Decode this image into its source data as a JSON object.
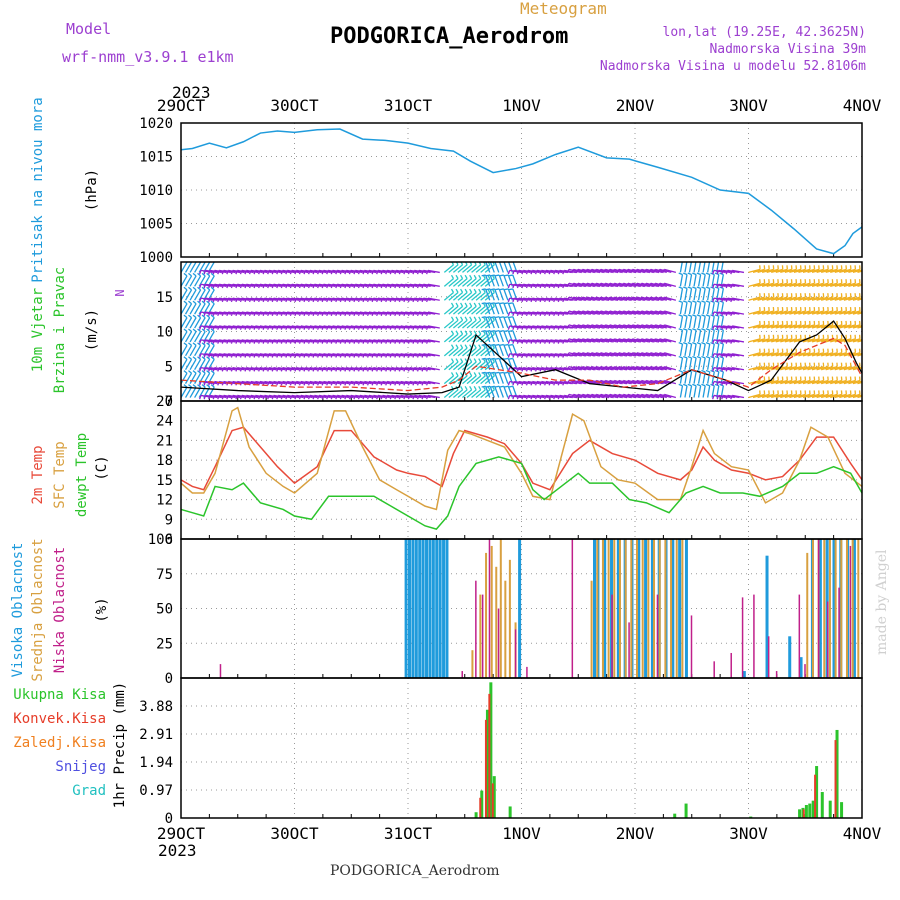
{
  "header": {
    "meteogram": "Meteogram",
    "station": "PODGORICA_Aerodrom",
    "model_label": "Model",
    "model": "wrf-nmm_v3.9.1 e1km",
    "lonlat": "lon,lat (19.25E, 42.3625N)",
    "elevation": "Nadmorska Visina 39m",
    "model_elevation": "Nadmorska Visina u modelu 52.8106m",
    "year_top": "2023",
    "year_bottom": "2023",
    "footer": "PODGORICA_Aerodrom",
    "watermark": "made by Angel"
  },
  "colors": {
    "pressure": "#1f9bdc",
    "wind_speed": "#000000",
    "wind_gust": "#e63c28",
    "t2m": "#e84a3a",
    "tsfc": "#d8a040",
    "dewpt": "#2bc42b",
    "cloud_high": "#1f9bdc",
    "cloud_mid": "#d8a040",
    "cloud_low": "#c0208a",
    "rain_total": "#2bc42b",
    "rain_conv": "#e63c28",
    "rain_frz": "#f08020",
    "snow": "#5050e0",
    "hail": "#20c0c0",
    "barb_calm": "#9020d0"
  },
  "time_axis": {
    "labels": [
      "29OCT",
      "30OCT",
      "31OCT",
      "1NOV",
      "2NOV",
      "3NOV",
      "4NOV"
    ]
  },
  "chart_data": [
    {
      "type": "line",
      "panel": "pressure",
      "ylabel": [
        "Pritisak na nivou mora",
        "(hPa)"
      ],
      "ylim": [
        1000,
        1020
      ],
      "yticks": [
        1000,
        1005,
        1010,
        1015,
        1020
      ],
      "x_unit": "days since 29OCT 00UTC",
      "series": [
        {
          "x": [
            0,
            0.1,
            0.25,
            0.4,
            0.55,
            0.7,
            0.85,
            1.0,
            1.2,
            1.4,
            1.6,
            1.8,
            2.0,
            2.2,
            2.4,
            2.55,
            2.75,
            2.95,
            3.1,
            3.3,
            3.5,
            3.75,
            3.95,
            4.2,
            4.5,
            4.75,
            5.0,
            5.2,
            5.4,
            5.6,
            5.75,
            5.85,
            5.92,
            6.0
          ],
          "y": [
            1016,
            1016.2,
            1017,
            1016.3,
            1017.2,
            1018.5,
            1018.8,
            1018.6,
            1019,
            1019.1,
            1017.6,
            1017.4,
            1017.0,
            1016.2,
            1015.8,
            1014.3,
            1012.6,
            1013.2,
            1013.9,
            1015.3,
            1016.4,
            1014.8,
            1014.6,
            1013.4,
            1011.9,
            1010.0,
            1009.5,
            1007.0,
            1004.2,
            1001.2,
            1000.5,
            1001.7,
            1003.5,
            1004.5
          ]
        }
      ]
    },
    {
      "type": "line",
      "panel": "wind",
      "ylabel": [
        "10m Vjetar",
        "Brzina i Pravac",
        "(m/s)"
      ],
      "compass": "N",
      "ylim": [
        0,
        20
      ],
      "yticks": [
        0,
        5,
        10,
        15
      ],
      "series": [
        {
          "name": "speed",
          "x": [
            0,
            0.5,
            1.0,
            1.5,
            2.0,
            2.3,
            2.45,
            2.6,
            2.8,
            3.0,
            3.3,
            3.6,
            3.9,
            4.2,
            4.5,
            4.8,
            5.0,
            5.2,
            5.45,
            5.6,
            5.75,
            5.85,
            5.95,
            6.0
          ],
          "y": [
            2,
            1.5,
            1.2,
            1.5,
            1.0,
            1.2,
            2.0,
            9.5,
            6.5,
            3.5,
            4.5,
            2.5,
            2.0,
            1.5,
            4.5,
            3.0,
            1.5,
            3.0,
            8.5,
            9.5,
            11.5,
            9.0,
            5.5,
            4.0
          ]
        },
        {
          "name": "gust",
          "x": [
            0,
            0.5,
            1.0,
            1.5,
            2.0,
            2.3,
            2.45,
            2.6,
            2.8,
            3.0,
            3.3,
            3.6,
            3.9,
            4.2,
            4.5,
            4.8,
            5.0,
            5.2,
            5.45,
            5.6,
            5.75,
            5.85,
            5.95,
            6.0
          ],
          "y": [
            3,
            2.5,
            2.0,
            2.0,
            1.5,
            2.0,
            3.0,
            5.0,
            4.5,
            4.0,
            3.0,
            3.0,
            2.0,
            2.5,
            4.5,
            3.0,
            2.0,
            4.5,
            7.0,
            8.0,
            9.0,
            8.0,
            5.0,
            3.5
          ]
        }
      ],
      "barbs": {
        "rows": [
          0.5,
          2.5,
          4.5,
          6.5,
          8.5,
          10.5,
          12.5,
          14.5,
          16.5,
          18.5
        ],
        "direction_by_segment": [
          {
            "from": 0,
            "to": 0.25,
            "angle": 60,
            "color": "#1f9bdc"
          },
          {
            "from": 0.25,
            "to": 2.3,
            "angle": 170,
            "color": "#9020d0"
          },
          {
            "from": 2.3,
            "to": 2.7,
            "angle": 40,
            "color": "#28c8c8"
          },
          {
            "from": 2.7,
            "to": 3.0,
            "angle": 110,
            "color": "#1f9bdc"
          },
          {
            "from": 3.0,
            "to": 3.5,
            "angle": 170,
            "color": "#9020d0"
          },
          {
            "from": 3.5,
            "to": 4.4,
            "angle": 165,
            "color": "#9020d0"
          },
          {
            "from": 4.4,
            "to": 4.8,
            "angle": 80,
            "color": "#1f9bdc"
          },
          {
            "from": 4.8,
            "to": 5.0,
            "angle": 170,
            "color": "#9020d0"
          },
          {
            "from": 5.0,
            "to": 6.0,
            "angle": 15,
            "color": "#f0b020"
          }
        ]
      }
    },
    {
      "type": "line",
      "panel": "temperature",
      "ylabel": [
        "2m Temp",
        "SFC Temp",
        "dewpt Temp",
        "(C)"
      ],
      "ylim": [
        6,
        27
      ],
      "yticks": [
        6,
        9,
        12,
        15,
        18,
        21,
        24,
        27
      ],
      "series": [
        {
          "name": "2m Temp",
          "x": [
            0,
            0.1,
            0.2,
            0.3,
            0.45,
            0.55,
            0.7,
            0.85,
            1.0,
            1.2,
            1.35,
            1.5,
            1.7,
            1.9,
            2.0,
            2.15,
            2.3,
            2.4,
            2.5,
            2.7,
            2.85,
            3.0,
            3.1,
            3.25,
            3.45,
            3.6,
            3.8,
            4.0,
            4.2,
            4.4,
            4.5,
            4.6,
            4.7,
            4.85,
            5.0,
            5.15,
            5.3,
            5.45,
            5.6,
            5.75,
            5.9,
            6.0
          ],
          "y": [
            15,
            14,
            13.5,
            17,
            22.5,
            23,
            20,
            17,
            14.5,
            17,
            22.5,
            22.5,
            18.5,
            16.5,
            16,
            15.5,
            14,
            19,
            22.5,
            21.5,
            20.5,
            17.5,
            14.5,
            13.5,
            19,
            21,
            19,
            18,
            16,
            15,
            16.5,
            20,
            18,
            16.5,
            16,
            15,
            15.5,
            18,
            21.5,
            21.5,
            17.5,
            15
          ]
        },
        {
          "name": "SFC Temp",
          "x": [
            0,
            0.1,
            0.2,
            0.3,
            0.45,
            0.5,
            0.6,
            0.75,
            0.9,
            1.0,
            1.2,
            1.35,
            1.45,
            1.6,
            1.75,
            1.9,
            2.0,
            2.15,
            2.25,
            2.35,
            2.45,
            2.55,
            2.7,
            2.85,
            3.0,
            3.1,
            3.25,
            3.45,
            3.55,
            3.7,
            3.85,
            4.0,
            4.2,
            4.4,
            4.5,
            4.6,
            4.7,
            4.85,
            5.0,
            5.15,
            5.3,
            5.45,
            5.55,
            5.7,
            5.85,
            6.0
          ],
          "y": [
            14.5,
            13,
            13,
            16,
            25.5,
            26,
            20,
            16,
            14,
            13,
            16,
            25.5,
            25.5,
            20,
            15,
            13.5,
            12.5,
            11,
            10.5,
            19.5,
            22.5,
            22,
            21,
            20,
            16,
            12.5,
            12,
            25,
            24,
            17,
            15,
            14.5,
            12,
            12,
            17,
            22.5,
            19,
            17,
            16.5,
            11.5,
            13,
            18,
            23,
            21.5,
            16,
            14
          ]
        },
        {
          "name": "dewpt Temp",
          "x": [
            0,
            0.1,
            0.2,
            0.3,
            0.45,
            0.55,
            0.7,
            0.9,
            1.0,
            1.15,
            1.3,
            1.5,
            1.7,
            1.85,
            2.0,
            2.15,
            2.25,
            2.35,
            2.45,
            2.6,
            2.8,
            3.0,
            3.1,
            3.2,
            3.35,
            3.5,
            3.6,
            3.8,
            3.95,
            4.1,
            4.3,
            4.45,
            4.6,
            4.75,
            4.95,
            5.1,
            5.3,
            5.45,
            5.6,
            5.75,
            5.9,
            6.0
          ],
          "y": [
            10.5,
            10,
            9.5,
            14,
            13.5,
            14.5,
            11.5,
            10.5,
            9.5,
            9,
            12.5,
            12.5,
            12.5,
            11,
            9.5,
            8,
            7.5,
            9.5,
            14,
            17.5,
            18.5,
            17.5,
            13.5,
            12,
            14,
            16,
            14.5,
            14.5,
            12,
            11.5,
            10,
            13,
            14,
            13,
            13,
            12.5,
            14,
            16,
            16,
            17,
            16,
            13
          ]
        }
      ]
    },
    {
      "type": "bar",
      "panel": "clouds",
      "ylabel": [
        "Visoka Oblacnost",
        "Srednja Oblacnost",
        "Niska Oblacnost",
        "(%)"
      ],
      "ylim": [
        0,
        100
      ],
      "yticks": [
        0,
        25,
        50,
        75,
        100
      ],
      "series": [
        {
          "name": "Visoka Oblacnost",
          "x": [
            1.97,
            2.0,
            2.03,
            2.06,
            2.09,
            2.12,
            2.15,
            2.18,
            2.21,
            2.24,
            2.27,
            2.3,
            2.33,
            2.97,
            3.63,
            3.66,
            3.72,
            3.78,
            3.84,
            3.9,
            3.96,
            4.02,
            4.08,
            4.14,
            4.2,
            4.26,
            4.32,
            4.38,
            4.44,
            4.95,
            5.15,
            5.35,
            5.45,
            5.55,
            5.62,
            5.68,
            5.74,
            5.8,
            5.86,
            5.92
          ],
          "y": [
            100,
            100,
            100,
            100,
            100,
            100,
            100,
            100,
            100,
            100,
            100,
            100,
            100,
            100,
            100,
            100,
            100,
            100,
            100,
            100,
            100,
            100,
            100,
            100,
            100,
            100,
            100,
            100,
            100,
            5,
            88,
            30,
            15,
            100,
            100,
            100,
            100,
            100,
            100,
            100
          ]
        },
        {
          "name": "Srednja Oblacnost",
          "x": [
            2.55,
            2.62,
            2.67,
            2.72,
            2.76,
            2.8,
            2.84,
            2.88,
            2.93,
            3.6,
            3.65,
            3.7,
            3.75,
            3.8,
            3.85,
            3.9,
            3.95,
            4.0,
            4.05,
            4.1,
            4.15,
            4.2,
            4.25,
            4.3,
            4.35,
            4.4,
            5.5,
            5.55,
            5.6,
            5.65,
            5.7,
            5.75,
            5.8,
            5.85,
            5.9,
            5.95
          ],
          "y": [
            20,
            60,
            90,
            95,
            80,
            100,
            70,
            85,
            40,
            70,
            100,
            100,
            100,
            100,
            100,
            100,
            100,
            100,
            100,
            100,
            100,
            100,
            100,
            100,
            100,
            100,
            90,
            100,
            100,
            100,
            100,
            100,
            100,
            100,
            100,
            100
          ]
        },
        {
          "name": "Niska Oblacnost",
          "x": [
            0.35,
            2.48,
            2.6,
            2.66,
            2.72,
            2.8,
            2.95,
            3.05,
            3.45,
            3.8,
            3.95,
            4.2,
            4.5,
            4.7,
            4.85,
            4.95,
            5.05,
            5.18,
            5.25,
            5.45,
            5.5,
            5.62,
            5.7,
            5.8,
            5.9
          ],
          "y": [
            10,
            5,
            70,
            60,
            100,
            50,
            35,
            8,
            100,
            60,
            40,
            60,
            45,
            12,
            18,
            58,
            60,
            30,
            5,
            60,
            10,
            100,
            55,
            65,
            95
          ]
        }
      ]
    },
    {
      "type": "bar",
      "panel": "precipitation",
      "ylabel": [
        "1hr Precip (mm)"
      ],
      "legend": [
        "Ukupna Kisa",
        "Konvek.Kisa",
        "Zaledj.Kisa",
        "Snijeg",
        "Grad"
      ],
      "ylim": [
        0,
        4.85
      ],
      "yticks": [
        0,
        0.97,
        1.94,
        2.91,
        3.88
      ],
      "series": [
        {
          "name": "Ukupna Kisa",
          "x": [
            2.6,
            2.65,
            2.7,
            2.73,
            2.76,
            2.9,
            4.35,
            4.45,
            5.02,
            5.45,
            5.48,
            5.51,
            5.54,
            5.57,
            5.6,
            5.65,
            5.72,
            5.78,
            5.82
          ],
          "y": [
            0.2,
            0.95,
            3.75,
            4.7,
            1.45,
            0.4,
            0.15,
            0.5,
            0.05,
            0.3,
            0.35,
            0.45,
            0.5,
            0.6,
            1.8,
            0.9,
            0.6,
            3.05,
            0.55
          ]
        },
        {
          "name": "Konvek.Kisa",
          "x": [
            2.65,
            2.7,
            2.73,
            2.76,
            5.5,
            5.6,
            5.78
          ],
          "y": [
            0.7,
            3.4,
            4.3,
            1.2,
            0.3,
            1.5,
            2.7
          ]
        }
      ]
    }
  ]
}
